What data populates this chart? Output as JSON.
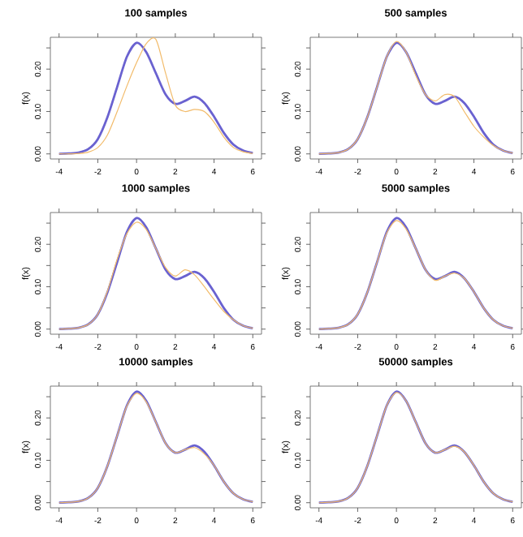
{
  "chart_data": [
    {
      "type": "line",
      "title": "100  samples",
      "ylabel": "f(x)",
      "x": [
        -4,
        -3.5,
        -3,
        -2.5,
        -2,
        -1.5,
        -1,
        -0.5,
        0,
        0.5,
        1,
        1.5,
        2,
        2.5,
        3,
        3.5,
        4,
        4.5,
        5,
        5.5,
        6
      ],
      "xlim": [
        -4.45,
        6.45
      ],
      "ylim": [
        -0.012,
        0.275
      ],
      "xticks": [
        -4,
        -2,
        0,
        2,
        4,
        6
      ],
      "yticks": [
        {
          "value": 0,
          "label": "0.00"
        },
        {
          "value": 0.05,
          "label": null
        },
        {
          "value": 0.1,
          "label": "0.10"
        },
        {
          "value": 0.15,
          "label": null
        },
        {
          "value": 0.2,
          "label": "0.20"
        },
        {
          "value": 0.25,
          "label": null
        }
      ],
      "series": [
        {
          "color": "#6a62d0",
          "values": [
            0,
            0.001,
            0.003,
            0.011,
            0.035,
            0.087,
            0.158,
            0.229,
            0.262,
            0.24,
            0.19,
            0.14,
            0.118,
            0.125,
            0.135,
            0.12,
            0.088,
            0.05,
            0.022,
            0.008,
            0.002
          ]
        },
        {
          "color": "#f2bb6a",
          "values": [
            0,
            0,
            0.001,
            0.004,
            0.015,
            0.045,
            0.1,
            0.16,
            0.215,
            0.26,
            0.27,
            0.19,
            0.115,
            0.1,
            0.105,
            0.1,
            0.075,
            0.04,
            0.015,
            0.005,
            0.001
          ]
        }
      ]
    },
    {
      "type": "line",
      "title": "500  samples",
      "ylabel": "f(x)",
      "x": [
        -4,
        -3.5,
        -3,
        -2.5,
        -2,
        -1.5,
        -1,
        -0.5,
        0,
        0.5,
        1,
        1.5,
        2,
        2.5,
        3,
        3.5,
        4,
        4.5,
        5,
        5.5,
        6
      ],
      "xlim": [
        -4.45,
        6.45
      ],
      "ylim": [
        -0.012,
        0.275
      ],
      "xticks": [
        -4,
        -2,
        0,
        2,
        4,
        6
      ],
      "yticks": [
        {
          "value": 0,
          "label": "0.00"
        },
        {
          "value": 0.05,
          "label": null
        },
        {
          "value": 0.1,
          "label": "0.10"
        },
        {
          "value": 0.15,
          "label": null
        },
        {
          "value": 0.2,
          "label": "0.20"
        },
        {
          "value": 0.25,
          "label": null
        }
      ],
      "series": [
        {
          "color": "#6a62d0",
          "values": [
            0,
            0.001,
            0.003,
            0.011,
            0.035,
            0.087,
            0.158,
            0.229,
            0.262,
            0.24,
            0.19,
            0.14,
            0.118,
            0.125,
            0.135,
            0.12,
            0.088,
            0.05,
            0.022,
            0.008,
            0.002
          ]
        },
        {
          "color": "#f2bb6a",
          "values": [
            0,
            0.001,
            0.003,
            0.011,
            0.035,
            0.087,
            0.158,
            0.229,
            0.265,
            0.24,
            0.185,
            0.14,
            0.125,
            0.14,
            0.135,
            0.1,
            0.065,
            0.04,
            0.02,
            0.008,
            0.002
          ]
        }
      ]
    },
    {
      "type": "line",
      "title": "1000  samples",
      "ylabel": "f(x)",
      "x": [
        -4,
        -3.5,
        -3,
        -2.5,
        -2,
        -1.5,
        -1,
        -0.5,
        0,
        0.5,
        1,
        1.5,
        2,
        2.5,
        3,
        3.5,
        4,
        4.5,
        5,
        5.5,
        6
      ],
      "xlim": [
        -4.45,
        6.45
      ],
      "ylim": [
        -0.012,
        0.275
      ],
      "xticks": [
        -4,
        -2,
        0,
        2,
        4,
        6
      ],
      "yticks": [
        {
          "value": 0,
          "label": "0.00"
        },
        {
          "value": 0.05,
          "label": null
        },
        {
          "value": 0.1,
          "label": "0.10"
        },
        {
          "value": 0.15,
          "label": null
        },
        {
          "value": 0.2,
          "label": "0.20"
        },
        {
          "value": 0.25,
          "label": null
        }
      ],
      "series": [
        {
          "color": "#6a62d0",
          "values": [
            0,
            0.001,
            0.003,
            0.011,
            0.035,
            0.087,
            0.158,
            0.229,
            0.262,
            0.24,
            0.19,
            0.14,
            0.118,
            0.125,
            0.135,
            0.12,
            0.088,
            0.05,
            0.022,
            0.008,
            0.002
          ]
        },
        {
          "color": "#f2bb6a",
          "values": [
            0,
            0.001,
            0.003,
            0.011,
            0.035,
            0.09,
            0.165,
            0.225,
            0.252,
            0.235,
            0.19,
            0.145,
            0.125,
            0.14,
            0.128,
            0.1,
            0.07,
            0.042,
            0.022,
            0.008,
            0.002
          ]
        }
      ]
    },
    {
      "type": "line",
      "title": "5000  samples",
      "ylabel": "f(x)",
      "x": [
        -4,
        -3.5,
        -3,
        -2.5,
        -2,
        -1.5,
        -1,
        -0.5,
        0,
        0.5,
        1,
        1.5,
        2,
        2.5,
        3,
        3.5,
        4,
        4.5,
        5,
        5.5,
        6
      ],
      "xlim": [
        -4.45,
        6.45
      ],
      "ylim": [
        -0.012,
        0.275
      ],
      "xticks": [
        -4,
        -2,
        0,
        2,
        4,
        6
      ],
      "yticks": [
        {
          "value": 0,
          "label": "0.00"
        },
        {
          "value": 0.05,
          "label": null
        },
        {
          "value": 0.1,
          "label": "0.10"
        },
        {
          "value": 0.15,
          "label": null
        },
        {
          "value": 0.2,
          "label": "0.20"
        },
        {
          "value": 0.25,
          "label": null
        }
      ],
      "series": [
        {
          "color": "#6a62d0",
          "values": [
            0,
            0.001,
            0.003,
            0.011,
            0.035,
            0.087,
            0.158,
            0.229,
            0.262,
            0.24,
            0.19,
            0.14,
            0.118,
            0.125,
            0.135,
            0.12,
            0.088,
            0.05,
            0.022,
            0.008,
            0.002
          ]
        },
        {
          "color": "#f2bb6a",
          "values": [
            0,
            0.001,
            0.003,
            0.011,
            0.035,
            0.087,
            0.158,
            0.227,
            0.256,
            0.236,
            0.19,
            0.14,
            0.115,
            0.125,
            0.132,
            0.12,
            0.088,
            0.05,
            0.022,
            0.008,
            0.002
          ]
        }
      ]
    },
    {
      "type": "line",
      "title": "10000  samples",
      "ylabel": "f(x)",
      "x": [
        -4,
        -3.5,
        -3,
        -2.5,
        -2,
        -1.5,
        -1,
        -0.5,
        0,
        0.5,
        1,
        1.5,
        2,
        2.5,
        3,
        3.5,
        4,
        4.5,
        5,
        5.5,
        6
      ],
      "xlim": [
        -4.45,
        6.45
      ],
      "ylim": [
        -0.012,
        0.275
      ],
      "xticks": [
        -4,
        -2,
        0,
        2,
        4,
        6
      ],
      "yticks": [
        {
          "value": 0,
          "label": "0.00"
        },
        {
          "value": 0.05,
          "label": null
        },
        {
          "value": 0.1,
          "label": "0.10"
        },
        {
          "value": 0.15,
          "label": null
        },
        {
          "value": 0.2,
          "label": "0.20"
        },
        {
          "value": 0.25,
          "label": null
        }
      ],
      "series": [
        {
          "color": "#6a62d0",
          "values": [
            0,
            0.001,
            0.003,
            0.011,
            0.035,
            0.087,
            0.158,
            0.229,
            0.262,
            0.24,
            0.19,
            0.14,
            0.118,
            0.125,
            0.135,
            0.12,
            0.088,
            0.05,
            0.022,
            0.008,
            0.002
          ]
        },
        {
          "color": "#f2bb6a",
          "values": [
            0,
            0.001,
            0.003,
            0.011,
            0.035,
            0.087,
            0.158,
            0.228,
            0.258,
            0.238,
            0.19,
            0.14,
            0.118,
            0.125,
            0.13,
            0.115,
            0.088,
            0.05,
            0.022,
            0.008,
            0.002
          ]
        }
      ]
    },
    {
      "type": "line",
      "title": "50000  samples",
      "ylabel": "f(x)",
      "x": [
        -4,
        -3.5,
        -3,
        -2.5,
        -2,
        -1.5,
        -1,
        -0.5,
        0,
        0.5,
        1,
        1.5,
        2,
        2.5,
        3,
        3.5,
        4,
        4.5,
        5,
        5.5,
        6
      ],
      "xlim": [
        -4.45,
        6.45
      ],
      "ylim": [
        -0.012,
        0.275
      ],
      "xticks": [
        -4,
        -2,
        0,
        2,
        4,
        6
      ],
      "yticks": [
        {
          "value": 0,
          "label": "0.00"
        },
        {
          "value": 0.05,
          "label": null
        },
        {
          "value": 0.1,
          "label": "0.10"
        },
        {
          "value": 0.15,
          "label": null
        },
        {
          "value": 0.2,
          "label": "0.20"
        },
        {
          "value": 0.25,
          "label": null
        }
      ],
      "series": [
        {
          "color": "#6a62d0",
          "values": [
            0,
            0.001,
            0.003,
            0.011,
            0.035,
            0.087,
            0.158,
            0.229,
            0.262,
            0.24,
            0.19,
            0.14,
            0.118,
            0.125,
            0.135,
            0.12,
            0.088,
            0.05,
            0.022,
            0.008,
            0.002
          ]
        },
        {
          "color": "#f2bb6a",
          "values": [
            0,
            0.001,
            0.003,
            0.011,
            0.035,
            0.087,
            0.158,
            0.229,
            0.26,
            0.24,
            0.19,
            0.14,
            0.118,
            0.125,
            0.133,
            0.12,
            0.088,
            0.05,
            0.022,
            0.008,
            0.002
          ]
        }
      ]
    }
  ]
}
